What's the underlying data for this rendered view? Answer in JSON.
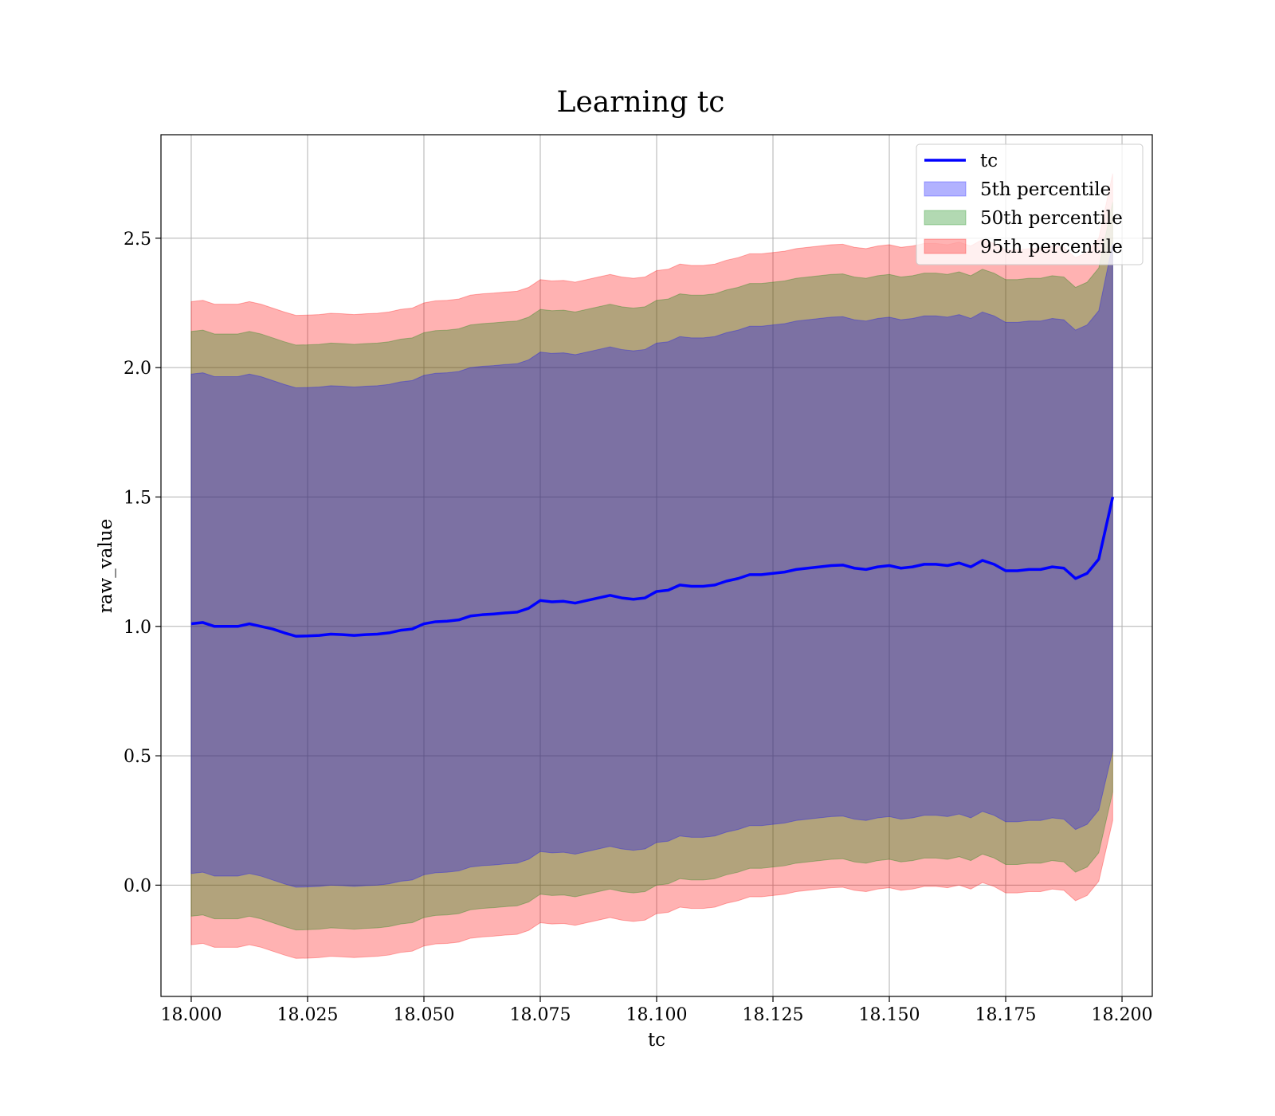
{
  "chart_data": {
    "type": "line",
    "title": "Learning tc",
    "xlabel": "tc",
    "ylabel": "raw_value",
    "xlim": [
      17.9935,
      18.2065
    ],
    "ylim": [
      -0.43,
      2.9
    ],
    "x_ticks": [
      18.0,
      18.025,
      18.05,
      18.075,
      18.1,
      18.125,
      18.15,
      18.175,
      18.2
    ],
    "x_tick_labels": [
      "18.000",
      "18.025",
      "18.050",
      "18.075",
      "18.100",
      "18.125",
      "18.150",
      "18.175",
      "18.200"
    ],
    "y_ticks": [
      0.0,
      0.5,
      1.0,
      1.5,
      2.0,
      2.5
    ],
    "y_tick_labels": [
      "0.0",
      "0.5",
      "1.0",
      "1.5",
      "2.0",
      "2.5"
    ],
    "grid": true,
    "legend_position": "top-right",
    "line_series": {
      "name": "tc",
      "color": "#0000ff",
      "x": [
        18.0,
        18.0025,
        18.005,
        18.0075,
        18.01,
        18.0125,
        18.015,
        18.0175,
        18.02,
        18.0225,
        18.025,
        18.0275,
        18.03,
        18.0325,
        18.035,
        18.0375,
        18.04,
        18.0425,
        18.045,
        18.0475,
        18.05,
        18.0525,
        18.055,
        18.0575,
        18.06,
        18.0625,
        18.065,
        18.0675,
        18.07,
        18.0725,
        18.075,
        18.0775,
        18.08,
        18.0825,
        18.085,
        18.0875,
        18.09,
        18.0925,
        18.095,
        18.0975,
        18.1,
        18.1025,
        18.105,
        18.1075,
        18.11,
        18.1125,
        18.115,
        18.1175,
        18.12,
        18.1225,
        18.125,
        18.1275,
        18.13,
        18.1325,
        18.135,
        18.1375,
        18.14,
        18.1425,
        18.145,
        18.1475,
        18.15,
        18.1525,
        18.155,
        18.1575,
        18.16,
        18.1625,
        18.165,
        18.1675,
        18.17,
        18.1725,
        18.175,
        18.1775,
        18.18,
        18.1825,
        18.185,
        18.1875,
        18.19,
        18.1925,
        18.195,
        18.198
      ],
      "values": [
        1.01,
        1.015,
        1.0,
        1.0,
        1.0,
        1.01,
        1.0,
        0.99,
        0.975,
        0.962,
        0.963,
        0.965,
        0.97,
        0.968,
        0.965,
        0.968,
        0.97,
        0.975,
        0.985,
        0.99,
        1.01,
        1.018,
        1.02,
        1.025,
        1.04,
        1.045,
        1.048,
        1.052,
        1.055,
        1.07,
        1.1,
        1.095,
        1.097,
        1.09,
        1.1,
        1.11,
        1.12,
        1.11,
        1.105,
        1.11,
        1.135,
        1.14,
        1.16,
        1.155,
        1.155,
        1.16,
        1.175,
        1.185,
        1.2,
        1.2,
        1.205,
        1.21,
        1.22,
        1.225,
        1.23,
        1.235,
        1.237,
        1.225,
        1.22,
        1.23,
        1.235,
        1.225,
        1.23,
        1.24,
        1.24,
        1.235,
        1.245,
        1.23,
        1.255,
        1.24,
        1.215,
        1.215,
        1.22,
        1.22,
        1.23,
        1.225,
        1.185,
        1.205,
        1.26,
        1.5
      ]
    },
    "band_series": [
      {
        "name": "5th percentile",
        "color": "#0000ff",
        "lower": [
          0.045,
          0.05,
          0.035,
          0.035,
          0.035,
          0.045,
          0.035,
          0.02,
          0.005,
          -0.008,
          -0.007,
          -0.005,
          0.0,
          -0.002,
          -0.005,
          -0.002,
          0.0,
          0.005,
          0.015,
          0.02,
          0.04,
          0.048,
          0.05,
          0.055,
          0.07,
          0.075,
          0.078,
          0.082,
          0.085,
          0.1,
          0.13,
          0.125,
          0.127,
          0.12,
          0.13,
          0.14,
          0.15,
          0.14,
          0.135,
          0.14,
          0.165,
          0.17,
          0.19,
          0.185,
          0.185,
          0.19,
          0.205,
          0.215,
          0.23,
          0.23,
          0.235,
          0.24,
          0.25,
          0.255,
          0.26,
          0.265,
          0.267,
          0.255,
          0.25,
          0.26,
          0.265,
          0.255,
          0.26,
          0.27,
          0.27,
          0.265,
          0.275,
          0.26,
          0.285,
          0.27,
          0.245,
          0.245,
          0.25,
          0.25,
          0.26,
          0.255,
          0.215,
          0.235,
          0.29,
          0.52
        ],
        "upper": [
          1.975,
          1.98,
          1.965,
          1.965,
          1.965,
          1.975,
          1.965,
          1.95,
          1.935,
          1.922,
          1.923,
          1.925,
          1.93,
          1.928,
          1.925,
          1.928,
          1.93,
          1.935,
          1.945,
          1.95,
          1.97,
          1.978,
          1.98,
          1.985,
          2.0,
          2.005,
          2.008,
          2.012,
          2.015,
          2.03,
          2.06,
          2.055,
          2.057,
          2.05,
          2.06,
          2.07,
          2.08,
          2.07,
          2.065,
          2.07,
          2.095,
          2.1,
          2.12,
          2.115,
          2.115,
          2.12,
          2.135,
          2.145,
          2.16,
          2.16,
          2.165,
          2.17,
          2.18,
          2.185,
          2.19,
          2.195,
          2.197,
          2.185,
          2.18,
          2.19,
          2.195,
          2.185,
          2.19,
          2.2,
          2.2,
          2.195,
          2.205,
          2.19,
          2.215,
          2.2,
          2.175,
          2.175,
          2.18,
          2.18,
          2.19,
          2.185,
          2.145,
          2.165,
          2.22,
          2.48
        ]
      },
      {
        "name": "50th percentile",
        "color": "#008000",
        "lower": [
          -0.12,
          -0.115,
          -0.13,
          -0.13,
          -0.13,
          -0.12,
          -0.13,
          -0.145,
          -0.16,
          -0.173,
          -0.172,
          -0.17,
          -0.165,
          -0.167,
          -0.17,
          -0.167,
          -0.165,
          -0.16,
          -0.15,
          -0.145,
          -0.125,
          -0.117,
          -0.115,
          -0.11,
          -0.095,
          -0.09,
          -0.087,
          -0.083,
          -0.08,
          -0.065,
          -0.035,
          -0.04,
          -0.038,
          -0.045,
          -0.035,
          -0.025,
          -0.015,
          -0.025,
          -0.03,
          -0.025,
          0.0,
          0.005,
          0.025,
          0.02,
          0.02,
          0.025,
          0.04,
          0.05,
          0.065,
          0.065,
          0.07,
          0.075,
          0.085,
          0.09,
          0.095,
          0.1,
          0.102,
          0.09,
          0.085,
          0.095,
          0.1,
          0.09,
          0.095,
          0.105,
          0.105,
          0.1,
          0.11,
          0.095,
          0.12,
          0.105,
          0.08,
          0.08,
          0.085,
          0.085,
          0.095,
          0.09,
          0.05,
          0.07,
          0.125,
          0.36
        ],
        "upper": [
          2.14,
          2.145,
          2.13,
          2.13,
          2.13,
          2.14,
          2.13,
          2.115,
          2.1,
          2.087,
          2.088,
          2.09,
          2.095,
          2.093,
          2.09,
          2.093,
          2.095,
          2.1,
          2.11,
          2.115,
          2.135,
          2.143,
          2.145,
          2.15,
          2.165,
          2.17,
          2.173,
          2.177,
          2.18,
          2.195,
          2.225,
          2.22,
          2.222,
          2.215,
          2.225,
          2.235,
          2.245,
          2.235,
          2.23,
          2.235,
          2.26,
          2.265,
          2.285,
          2.28,
          2.28,
          2.285,
          2.3,
          2.31,
          2.325,
          2.325,
          2.33,
          2.335,
          2.345,
          2.35,
          2.355,
          2.36,
          2.362,
          2.35,
          2.345,
          2.355,
          2.36,
          2.35,
          2.355,
          2.365,
          2.365,
          2.36,
          2.37,
          2.355,
          2.38,
          2.365,
          2.34,
          2.34,
          2.345,
          2.345,
          2.355,
          2.35,
          2.31,
          2.33,
          2.385,
          2.64
        ]
      },
      {
        "name": "95th percentile",
        "color": "#ff0000",
        "lower": [
          -0.23,
          -0.225,
          -0.24,
          -0.24,
          -0.24,
          -0.23,
          -0.24,
          -0.255,
          -0.27,
          -0.283,
          -0.282,
          -0.28,
          -0.275,
          -0.277,
          -0.28,
          -0.277,
          -0.275,
          -0.27,
          -0.26,
          -0.255,
          -0.235,
          -0.227,
          -0.225,
          -0.22,
          -0.205,
          -0.2,
          -0.197,
          -0.193,
          -0.19,
          -0.175,
          -0.145,
          -0.15,
          -0.148,
          -0.155,
          -0.145,
          -0.135,
          -0.125,
          -0.135,
          -0.14,
          -0.135,
          -0.11,
          -0.105,
          -0.085,
          -0.09,
          -0.09,
          -0.085,
          -0.07,
          -0.06,
          -0.045,
          -0.045,
          -0.04,
          -0.035,
          -0.025,
          -0.02,
          -0.015,
          -0.01,
          -0.008,
          -0.02,
          -0.025,
          -0.015,
          -0.01,
          -0.02,
          -0.015,
          -0.005,
          -0.005,
          -0.01,
          0.0,
          -0.015,
          0.01,
          -0.005,
          -0.03,
          -0.03,
          -0.025,
          -0.025,
          -0.015,
          -0.02,
          -0.06,
          -0.04,
          0.015,
          0.25
        ],
        "upper": [
          2.255,
          2.26,
          2.245,
          2.245,
          2.245,
          2.255,
          2.245,
          2.23,
          2.215,
          2.202,
          2.203,
          2.205,
          2.21,
          2.208,
          2.205,
          2.208,
          2.21,
          2.215,
          2.225,
          2.23,
          2.25,
          2.258,
          2.26,
          2.265,
          2.28,
          2.285,
          2.288,
          2.292,
          2.295,
          2.31,
          2.34,
          2.335,
          2.337,
          2.33,
          2.34,
          2.35,
          2.36,
          2.35,
          2.345,
          2.35,
          2.375,
          2.38,
          2.4,
          2.395,
          2.395,
          2.4,
          2.415,
          2.425,
          2.44,
          2.44,
          2.445,
          2.45,
          2.46,
          2.465,
          2.47,
          2.475,
          2.477,
          2.465,
          2.46,
          2.47,
          2.475,
          2.465,
          2.47,
          2.48,
          2.48,
          2.475,
          2.485,
          2.47,
          2.495,
          2.48,
          2.455,
          2.455,
          2.46,
          2.46,
          2.47,
          2.465,
          2.425,
          2.445,
          2.5,
          2.75
        ]
      }
    ],
    "legend": [
      {
        "label": "tc",
        "kind": "line",
        "color": "#0000ff"
      },
      {
        "label": "5th percentile",
        "kind": "patch",
        "color": "#0000ff"
      },
      {
        "label": "50th percentile",
        "kind": "patch",
        "color": "#008000"
      },
      {
        "label": "95th percentile",
        "kind": "patch",
        "color": "#ff0000"
      }
    ]
  }
}
